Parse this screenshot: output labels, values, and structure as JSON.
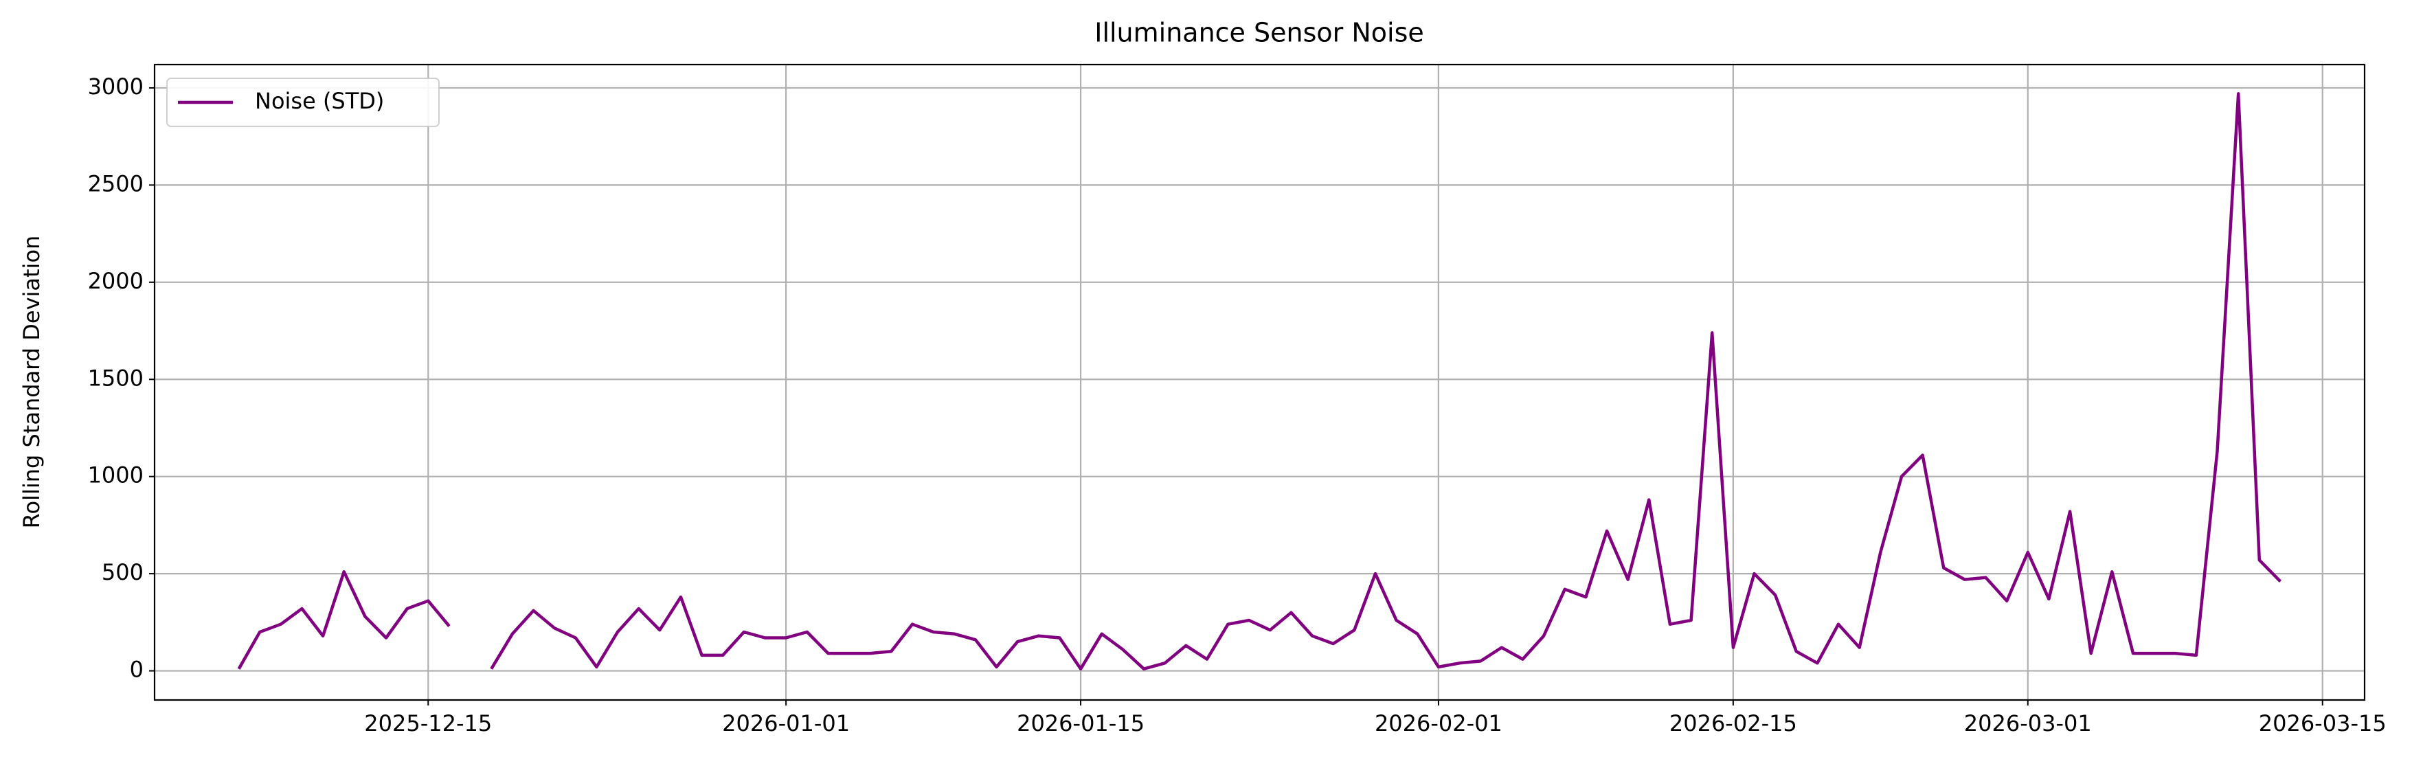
{
  "chart_data": {
    "type": "line",
    "title": "Illuminance Sensor Noise",
    "y_label": "Rolling Standard Deviation",
    "x": [
      "2025-12-06",
      "2025-12-07",
      "2025-12-08",
      "2025-12-09",
      "2025-12-10",
      "2025-12-11",
      "2025-12-12",
      "2025-12-13",
      "2025-12-14",
      "2025-12-15",
      "2025-12-16",
      "2025-12-17",
      "2025-12-18",
      "2025-12-19",
      "2025-12-20",
      "2025-12-21",
      "2025-12-22",
      "2025-12-23",
      "2025-12-24",
      "2025-12-25",
      "2025-12-26",
      "2025-12-27",
      "2025-12-28",
      "2025-12-29",
      "2025-12-30",
      "2025-12-31",
      "2026-01-01",
      "2026-01-02",
      "2026-01-03",
      "2026-01-04",
      "2026-01-05",
      "2026-01-06",
      "2026-01-07",
      "2026-01-08",
      "2026-01-09",
      "2026-01-10",
      "2026-01-11",
      "2026-01-12",
      "2026-01-13",
      "2026-01-14",
      "2026-01-15",
      "2026-01-16",
      "2026-01-17",
      "2026-01-18",
      "2026-01-19",
      "2026-01-20",
      "2026-01-21",
      "2026-01-22",
      "2026-01-23",
      "2026-01-24",
      "2026-01-25",
      "2026-01-26",
      "2026-01-27",
      "2026-01-28",
      "2026-01-29",
      "2026-01-30",
      "2026-01-31",
      "2026-02-01",
      "2026-02-02",
      "2026-02-03",
      "2026-02-04",
      "2026-02-05",
      "2026-02-06",
      "2026-02-07",
      "2026-02-08",
      "2026-02-09",
      "2026-02-10",
      "2026-02-11",
      "2026-02-12",
      "2026-02-13",
      "2026-02-14",
      "2026-02-15",
      "2026-02-16",
      "2026-02-17",
      "2026-02-18",
      "2026-02-19",
      "2026-02-20",
      "2026-02-21",
      "2026-02-22",
      "2026-02-23",
      "2026-02-24",
      "2026-02-25",
      "2026-02-26",
      "2026-02-27",
      "2026-02-28",
      "2026-03-01",
      "2026-03-02",
      "2026-03-03",
      "2026-03-04",
      "2026-03-05",
      "2026-03-06",
      "2026-03-07",
      "2026-03-08",
      "2026-03-09",
      "2026-03-10",
      "2026-03-11",
      "2026-03-12",
      "2026-03-13"
    ],
    "series": [
      {
        "name": "Noise (STD)",
        "color": "#800080",
        "values": [
          10,
          200,
          240,
          320,
          180,
          510,
          280,
          170,
          320,
          360,
          230,
          null,
          10,
          190,
          310,
          220,
          170,
          20,
          200,
          320,
          210,
          380,
          80,
          80,
          200,
          170,
          170,
          200,
          90,
          90,
          90,
          100,
          240,
          200,
          190,
          160,
          20,
          150,
          180,
          170,
          10,
          190,
          110,
          10,
          40,
          130,
          60,
          240,
          260,
          210,
          300,
          180,
          140,
          210,
          500,
          260,
          190,
          20,
          40,
          50,
          120,
          60,
          180,
          420,
          380,
          720,
          470,
          880,
          240,
          260,
          1740,
          120,
          500,
          390,
          100,
          40,
          240,
          120,
          610,
          1000,
          1110,
          530,
          470,
          480,
          360,
          610,
          370,
          820,
          90,
          510,
          90,
          90,
          90,
          80,
          1130,
          2970,
          570,
          460
        ]
      }
    ],
    "xlim": [
      "2025-12-02",
      "2026-03-17"
    ],
    "xticks": [
      "2025-12-15",
      "2026-01-01",
      "2026-01-15",
      "2026-02-01",
      "2026-02-15",
      "2026-03-01",
      "2026-03-15"
    ],
    "ylim": [
      -150,
      3120
    ],
    "yticks": [
      0,
      500,
      1000,
      1500,
      2000,
      2500,
      3000
    ],
    "grid": true,
    "legend": "upper left"
  }
}
